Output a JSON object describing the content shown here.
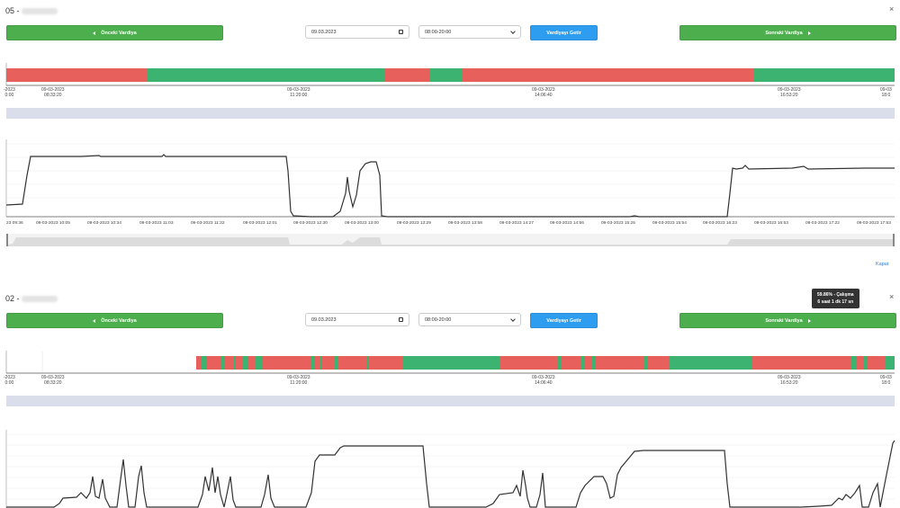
{
  "panels": [
    {
      "title": "05 -",
      "prev_label": "Önceki Vardiya",
      "next_label": "Sonraki Vardiya",
      "date_value": "09.03.2023",
      "shift_value": "08:00-20:00",
      "fetch_label": "Vardiyayı Getir",
      "timeline_ticks": [
        {
          "l1": "-2023",
          "l2": "0:00"
        },
        {
          "l1": "09-03-2023",
          "l2": "08:33:20"
        },
        {
          "l1": "09-03-2023",
          "l2": "11:20:00"
        },
        {
          "l1": "09-03-2023",
          "l2": "14:06:40"
        },
        {
          "l1": "09-03-2023",
          "l2": "16:53:20"
        },
        {
          "l1": "09-03",
          "l2": "18:0"
        }
      ],
      "chart_ticks": [
        "23 09:36",
        "09-03-2023 10:05",
        "09-03-2023 10:34",
        "09-03-2023 11:03",
        "09-03-2023 11:32",
        "09-03-2023 12:01",
        "09-03-2023 12:30",
        "09-03-2023 13:00",
        "09-03-2023 13:29",
        "09-03-2023 13:58",
        "09-03-2023 14:27",
        "09-03-2023 14:56",
        "09-03-2023 15:25",
        "09-03-2023 15:54",
        "09-03-2023 16:23",
        "09-03-2023 16:53",
        "09-03-2023 17:22",
        "09-03-2023 17:53"
      ],
      "close_link": "Kapat"
    },
    {
      "title": "02 -",
      "prev_label": "Önceki Vardiya",
      "next_label": "Sonraki Vardiya",
      "date_value": "09.03.2023",
      "shift_value": "08:00-20:00",
      "fetch_label": "Vardiyayı Getir",
      "timeline_ticks": [
        {
          "l1": "-2023",
          "l2": "0:00"
        },
        {
          "l1": "09-03-2023",
          "l2": "08:33:20"
        },
        {
          "l1": "09-03-2023",
          "l2": "11:20:00"
        },
        {
          "l1": "09-03-2023",
          "l2": "14:06:40"
        },
        {
          "l1": "09-03-2023",
          "l2": "16:53:20"
        },
        {
          "l1": "09-03",
          "l2": "18:0"
        }
      ],
      "tooltip_line1": "59.86% - Çalışma",
      "tooltip_line2": "6 saat 1 dk 17 sn"
    }
  ],
  "colors": {
    "green": "#3cb371",
    "red": "#e8605c",
    "button_green": "#4cae4c",
    "button_blue": "#2e9df0"
  },
  "icons": [
    "close-icon",
    "caret-left-icon",
    "caret-right-icon",
    "calendar-icon",
    "chevron-down-icon"
  ]
}
